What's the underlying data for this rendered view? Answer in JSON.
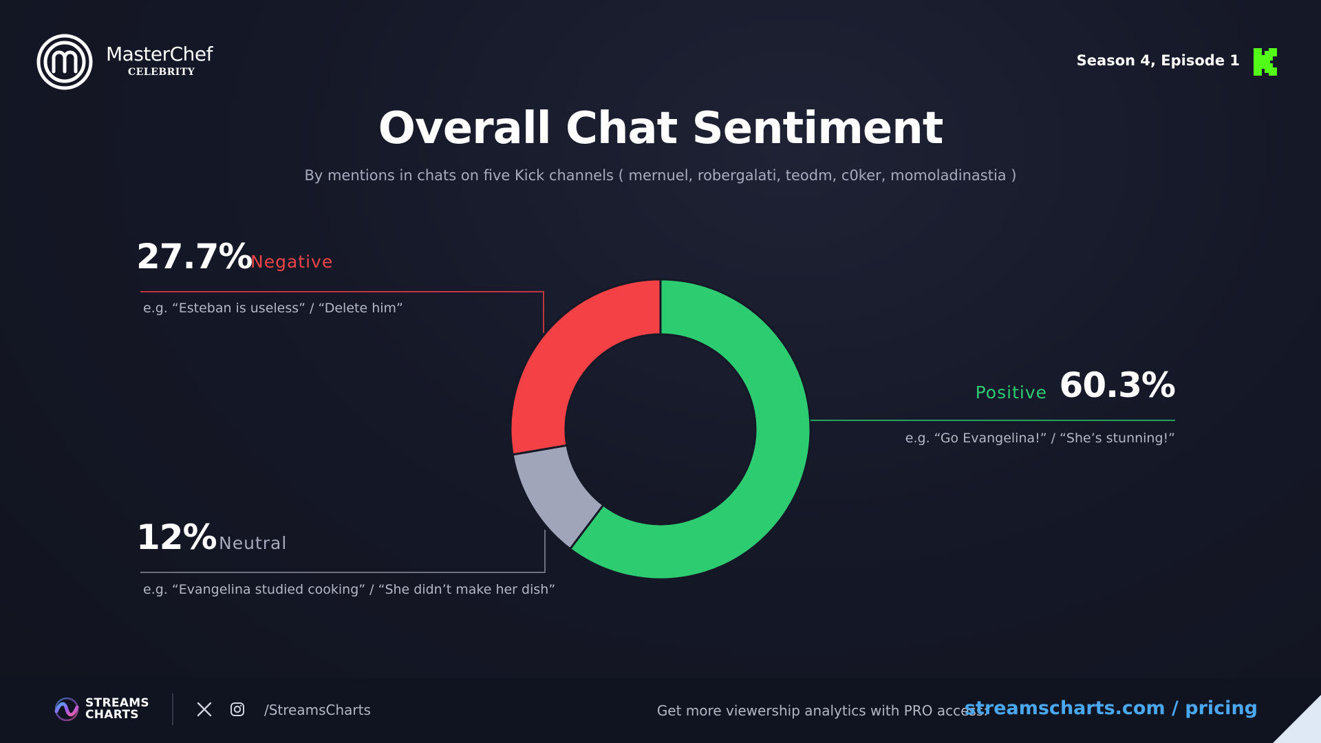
{
  "header": {
    "brand_name": "MasterChef",
    "brand_sub": "CELEBRITY",
    "episode": "Season 4, Episode 1",
    "logo_icon": "masterchef-m-icon",
    "platform_icon": "kick-k-icon",
    "platform_color": "#53fc18"
  },
  "chart_data": {
    "type": "pie",
    "title": "Overall Chat Sentiment",
    "subtitle": "By mentions in chats on five Kick channels   ( mernuel, robergalati, teodm, c0ker, momoladinastia )",
    "donut": true,
    "slices": [
      {
        "name": "Positive",
        "value": 60.3,
        "pct_label": "60.3%",
        "color": "#2ecc71",
        "example": "e.g. “Go Evangelina!” / “She’s stunning!”"
      },
      {
        "name": "Neutral",
        "value": 12,
        "pct_label": "12%",
        "color": "#a0a5b9",
        "example": "e.g. “Evangelina studied cooking” / “She didn’t make her dish”"
      },
      {
        "name": "Negative",
        "value": 27.7,
        "pct_label": "27.7%",
        "color": "#f34145",
        "example": "e.g. “Esteban is useless” / “Delete him”"
      }
    ]
  },
  "footer": {
    "brand_line1": "STREAMS",
    "brand_line2": "CHARTS",
    "handle": "/StreamsCharts",
    "cta": "Get more viewership analytics with PRO access:",
    "cta_link": "streamscharts.com / pricing",
    "social_icons": [
      "x-icon",
      "instagram-icon"
    ]
  }
}
